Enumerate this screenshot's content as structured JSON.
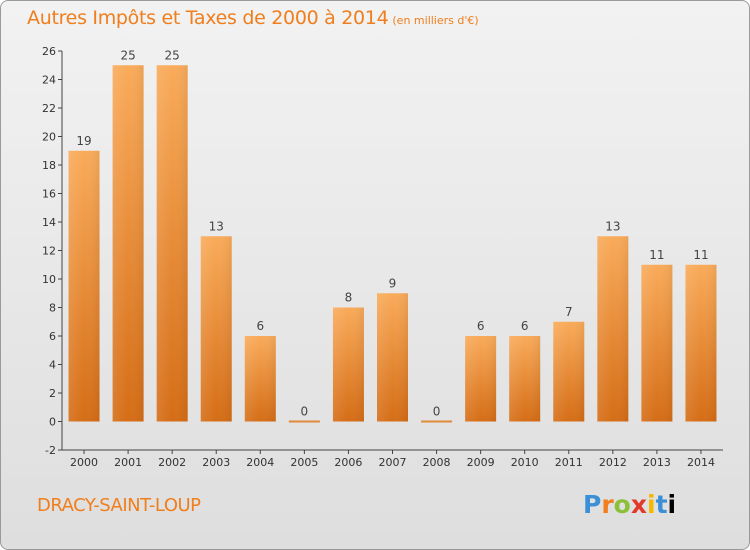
{
  "header": {
    "title": "Autres Impôts et Taxes de 2000 à 2014",
    "subtitle": "(en milliers d'€)"
  },
  "footer": {
    "commune": "DRACY-SAINT-LOUP",
    "logo": "Proxiti",
    "logo_letters": [
      "P",
      "r",
      "o",
      "x",
      "i",
      "t",
      "i"
    ]
  },
  "colors": {
    "accent": "#f07e1c",
    "bar_light": "#f6a652",
    "bar_dark": "#d8711a"
  },
  "chart_data": {
    "type": "bar",
    "title": "Autres Impôts et Taxes de 2000 à 2014",
    "categories": [
      "2000",
      "2001",
      "2002",
      "2003",
      "2004",
      "2005",
      "2006",
      "2007",
      "2008",
      "2009",
      "2010",
      "2011",
      "2012",
      "2013",
      "2014"
    ],
    "values": [
      19,
      25,
      25,
      13,
      6,
      0,
      8,
      9,
      0,
      6,
      6,
      7,
      13,
      11,
      11
    ],
    "ylim": [
      -2,
      26
    ],
    "yticks": [
      -2,
      0,
      2,
      4,
      6,
      8,
      10,
      12,
      14,
      16,
      18,
      20,
      22,
      24,
      26
    ],
    "grid": false,
    "xlabel": "",
    "ylabel": ""
  }
}
